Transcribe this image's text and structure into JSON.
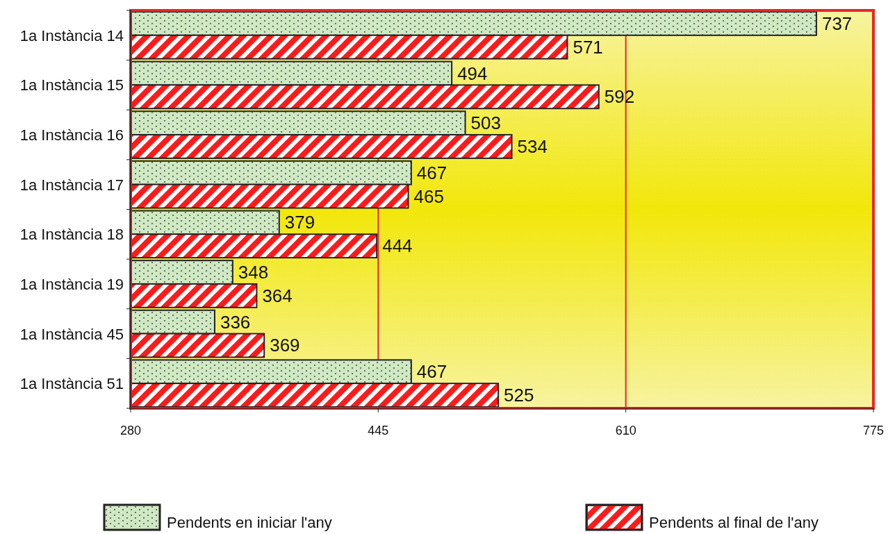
{
  "chart_data": {
    "type": "bar",
    "orientation": "horizontal",
    "categories": [
      "1a Instància 14",
      "1a Instància 15",
      "1a Instància 16",
      "1a Instància 17",
      "1a Instància 18",
      "1a Instància 19",
      "1a Instància 45",
      "1a Instància 51"
    ],
    "series": [
      {
        "name": "Pendents en iniciar l'any",
        "color": "#cfe9c3",
        "values": [
          737,
          494,
          503,
          467,
          379,
          348,
          336,
          467
        ]
      },
      {
        "name": "Pendents al final de l'any",
        "color": "#ff1a1a",
        "values": [
          571,
          592,
          534,
          465,
          444,
          364,
          369,
          525
        ]
      }
    ],
    "xlim": [
      280,
      775
    ],
    "xticks": [
      280,
      445,
      610,
      775
    ],
    "grid": "x",
    "legend": "bottom",
    "data_labels": true
  }
}
